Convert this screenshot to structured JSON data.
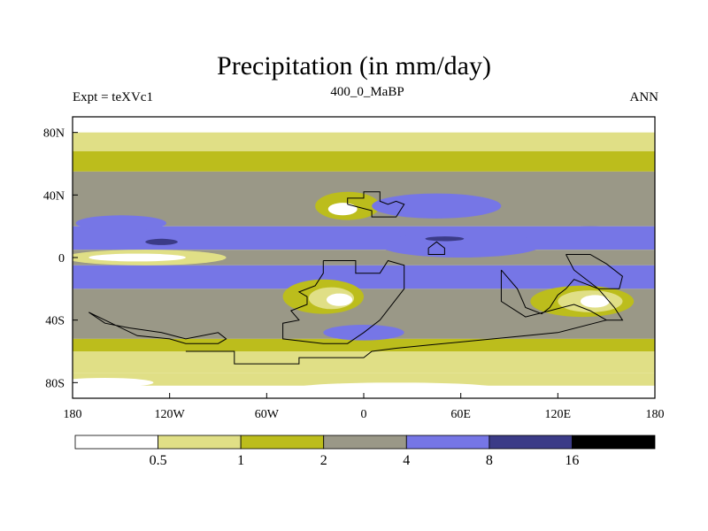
{
  "chart_data": {
    "type": "heatmap",
    "title": "Precipitation (in mm/day)",
    "left_string": "Expt = teXVc1",
    "center_string": "400_0_MaBP",
    "right_string": "ANN",
    "xlabel": "",
    "ylabel": "",
    "xlim": [
      -180,
      180
    ],
    "ylim": [
      -90,
      90
    ],
    "x_ticks": [
      -180,
      -120,
      -60,
      0,
      60,
      120,
      180
    ],
    "x_tick_labels": [
      "180",
      "120W",
      "60W",
      "0",
      "60E",
      "120E",
      "180"
    ],
    "y_ticks": [
      80,
      40,
      0,
      -40,
      -80
    ],
    "y_tick_labels": [
      "80N",
      "40N",
      "0",
      "40S",
      "80S"
    ],
    "colorbar": {
      "levels": [
        0.5,
        1,
        2,
        4,
        8,
        16
      ],
      "labels": [
        "0.5",
        "1",
        "2",
        "4",
        "8",
        "16"
      ],
      "colors": [
        "#ffffff",
        "#e0df86",
        "#bcbd1c",
        "#9a9887",
        "#7676e6",
        "#3b3b87",
        "#000000"
      ]
    },
    "zonal_bands": [
      {
        "lat": [
          80,
          90
        ],
        "class": 0
      },
      {
        "lat": [
          68,
          80
        ],
        "class": 1
      },
      {
        "lat": [
          55,
          68
        ],
        "class": 2
      },
      {
        "lat": [
          20,
          55
        ],
        "class": 3
      },
      {
        "lat": [
          5,
          20
        ],
        "class": 4
      },
      {
        "lat": [
          -5,
          5
        ],
        "class": 3
      },
      {
        "lat": [
          -20,
          -5
        ],
        "class": 4
      },
      {
        "lat": [
          -52,
          -20
        ],
        "class": 3
      },
      {
        "lat": [
          -60,
          -52
        ],
        "class": 2
      },
      {
        "lat": [
          -74,
          -60
        ],
        "class": 1
      },
      {
        "lat": [
          -82,
          -74
        ],
        "class": 1
      },
      {
        "lat": [
          -90,
          -82
        ],
        "class": 0
      }
    ],
    "features": [
      {
        "kind": "ellipse",
        "lon": -135,
        "lat": 0,
        "rlon": 50,
        "rlat": 5,
        "class": 1
      },
      {
        "kind": "ellipse",
        "lon": -140,
        "lat": 0,
        "rlon": 30,
        "rlat": 2.5,
        "class": 0
      },
      {
        "kind": "ellipse",
        "lon": -150,
        "lat": 22,
        "rlon": 28,
        "rlat": 5,
        "class": 4
      },
      {
        "kind": "ellipse",
        "lon": -10,
        "lat": 33,
        "rlon": 20,
        "rlat": 9,
        "class": 2
      },
      {
        "kind": "ellipse",
        "lon": -13,
        "lat": 31,
        "rlon": 9,
        "rlat": 4,
        "class": 0
      },
      {
        "kind": "ellipse",
        "lon": 45,
        "lat": 33,
        "rlon": 40,
        "rlat": 8,
        "class": 4
      },
      {
        "kind": "ellipse",
        "lon": -25,
        "lat": -25,
        "rlon": 25,
        "rlat": 11,
        "class": 2
      },
      {
        "kind": "ellipse",
        "lon": -20,
        "lat": -26,
        "rlon": 14,
        "rlat": 7,
        "class": 1
      },
      {
        "kind": "ellipse",
        "lon": -15,
        "lat": -27,
        "rlon": 8,
        "rlat": 4,
        "class": 0
      },
      {
        "kind": "ellipse",
        "lon": 135,
        "lat": -28,
        "rlon": 32,
        "rlat": 10,
        "class": 2
      },
      {
        "kind": "ellipse",
        "lon": 140,
        "lat": -28,
        "rlon": 20,
        "rlat": 7,
        "class": 1
      },
      {
        "kind": "ellipse",
        "lon": 143,
        "lat": -28,
        "rlon": 9,
        "rlat": 4,
        "class": 0
      },
      {
        "kind": "ellipse",
        "lon": 0,
        "lat": -48,
        "rlon": 25,
        "rlat": 5,
        "class": 4
      },
      {
        "kind": "ellipse",
        "lon": 60,
        "lat": 8,
        "rlon": 50,
        "rlat": 8,
        "class": 4
      },
      {
        "kind": "ellipse",
        "lon": -125,
        "lat": 10,
        "rlon": 10,
        "rlat": 2,
        "class": 5
      },
      {
        "kind": "ellipse",
        "lon": 50,
        "lat": 12,
        "rlon": 12,
        "rlat": 1.5,
        "class": 5
      },
      {
        "kind": "ellipse",
        "lon": 140,
        "lat": 17,
        "rlon": 20,
        "rlat": 3,
        "class": 4
      },
      {
        "kind": "ellipse",
        "lon": -160,
        "lat": -80,
        "rlon": 30,
        "rlat": 3,
        "class": 0
      },
      {
        "kind": "ellipse",
        "lon": 20,
        "lat": -83,
        "rlon": 60,
        "rlat": 3,
        "class": 0
      }
    ],
    "coastlines": [
      [
        [
          -25,
          -2
        ],
        [
          -5,
          -2
        ],
        [
          -5,
          -10
        ],
        [
          10,
          -10
        ],
        [
          15,
          -2
        ],
        [
          25,
          -5
        ],
        [
          25,
          -20
        ],
        [
          10,
          -40
        ],
        [
          0,
          -48
        ],
        [
          -10,
          -55
        ],
        [
          -25,
          -55
        ],
        [
          -50,
          -52
        ],
        [
          -50,
          -42
        ],
        [
          -40,
          -40
        ],
        [
          -45,
          -34
        ],
        [
          -35,
          -30
        ],
        [
          -35,
          -25
        ],
        [
          -40,
          -22
        ],
        [
          -30,
          -18
        ],
        [
          -25,
          -10
        ],
        [
          -25,
          -2
        ]
      ],
      [
        [
          -10,
          34
        ],
        [
          -10,
          38
        ],
        [
          0,
          38
        ],
        [
          0,
          42
        ],
        [
          10,
          42
        ],
        [
          10,
          36
        ],
        [
          15,
          34
        ],
        [
          20,
          36
        ],
        [
          25,
          34
        ],
        [
          20,
          26
        ],
        [
          5,
          26
        ],
        [
          5,
          30
        ],
        [
          -10,
          34
        ]
      ],
      [
        [
          40,
          6
        ],
        [
          45,
          10
        ],
        [
          50,
          6
        ],
        [
          50,
          2
        ],
        [
          40,
          2
        ],
        [
          40,
          6
        ]
      ],
      [
        [
          85,
          -8
        ],
        [
          95,
          -20
        ],
        [
          100,
          -32
        ],
        [
          110,
          -36
        ],
        [
          115,
          -32
        ],
        [
          120,
          -24
        ],
        [
          125,
          -20
        ],
        [
          130,
          -14
        ],
        [
          145,
          -20
        ],
        [
          155,
          -32
        ],
        [
          160,
          -40
        ],
        [
          150,
          -40
        ],
        [
          140,
          -34
        ],
        [
          130,
          -30
        ],
        [
          115,
          -34
        ],
        [
          100,
          -38
        ],
        [
          85,
          -28
        ],
        [
          85,
          -8
        ]
      ],
      [
        [
          125,
          2
        ],
        [
          140,
          2
        ],
        [
          150,
          -4
        ],
        [
          160,
          -12
        ],
        [
          158,
          -20
        ],
        [
          145,
          -20
        ],
        [
          130,
          -8
        ],
        [
          125,
          2
        ]
      ],
      [
        [
          -170,
          -35
        ],
        [
          -160,
          -40
        ],
        [
          -140,
          -50
        ],
        [
          -120,
          -52
        ],
        [
          -110,
          -55
        ],
        [
          -90,
          -55
        ],
        [
          -85,
          -52
        ],
        [
          -90,
          -48
        ],
        [
          -110,
          -52
        ],
        [
          -125,
          -48
        ],
        [
          -145,
          -45
        ],
        [
          -160,
          -42
        ],
        [
          -170,
          -35
        ]
      ],
      [
        [
          -110,
          -60
        ],
        [
          -80,
          -60
        ],
        [
          -80,
          -68
        ],
        [
          -40,
          -68
        ],
        [
          -40,
          -64
        ],
        [
          0,
          -64
        ],
        [
          5,
          -60
        ],
        [
          20,
          -58
        ],
        [
          40,
          -56
        ],
        [
          80,
          -52
        ],
        [
          120,
          -48
        ],
        [
          150,
          -40
        ]
      ]
    ]
  }
}
